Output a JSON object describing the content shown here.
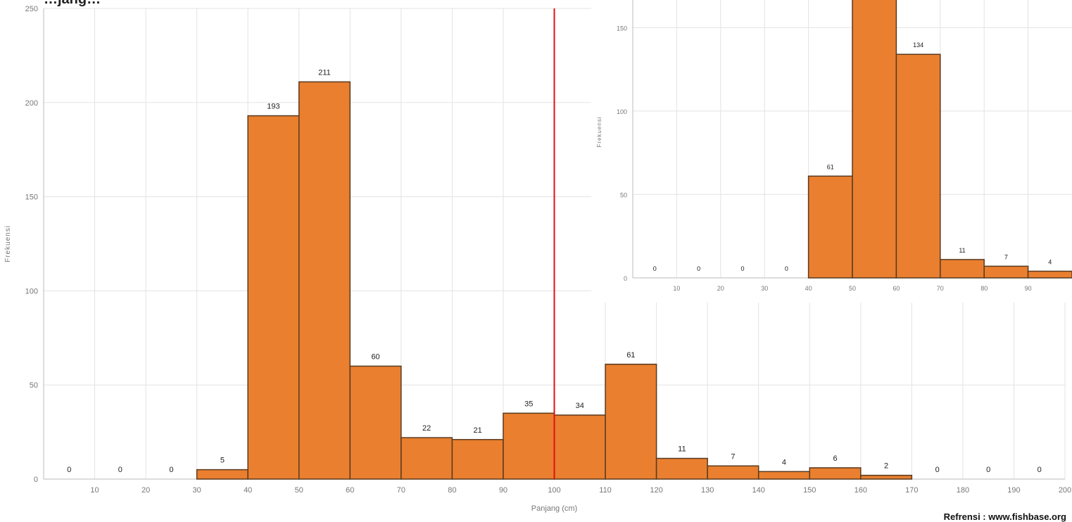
{
  "title_fragment": "…jang…",
  "reference": "Refrensi : www.fishbase.org",
  "colors": {
    "bar": "#E97F2F",
    "bar_stroke": "#5a3a1f",
    "marker": "#e01010",
    "grid": "#e3e3e3"
  },
  "chart_data": [
    {
      "type": "bar",
      "title": "",
      "xlabel": "Panjang (cm)",
      "ylabel": "Frekuensi",
      "xlim": [
        0,
        200
      ],
      "ylim": [
        0,
        250
      ],
      "bin_width": 10,
      "x_ticks": [
        10,
        20,
        30,
        40,
        50,
        60,
        70,
        80,
        90,
        100,
        110,
        120,
        130,
        140,
        150,
        160,
        170,
        180,
        190,
        200
      ],
      "y_ticks": [
        0,
        50,
        100,
        150,
        200,
        250
      ],
      "bin_starts": [
        0,
        10,
        20,
        30,
        40,
        50,
        60,
        70,
        80,
        90,
        100,
        110,
        120,
        130,
        140,
        150,
        160,
        170,
        180,
        190
      ],
      "values": [
        0,
        0,
        0,
        5,
        193,
        211,
        60,
        22,
        21,
        35,
        34,
        61,
        11,
        7,
        4,
        6,
        2,
        0,
        0,
        0
      ],
      "marker_line_x": 100,
      "grid": true
    },
    {
      "type": "bar",
      "title": "",
      "xlabel": "",
      "ylabel": "Frekuensi",
      "xlim": [
        0,
        100
      ],
      "ylim": [
        0,
        175
      ],
      "bin_width": 10,
      "x_ticks": [
        10,
        20,
        30,
        40,
        50,
        60,
        70,
        80,
        90
      ],
      "y_ticks": [
        0,
        50,
        100,
        150
      ],
      "bin_starts": [
        0,
        10,
        20,
        30,
        40,
        50,
        60,
        70,
        80,
        90
      ],
      "values": [
        0,
        0,
        0,
        0,
        61,
        175,
        134,
        11,
        7,
        4
      ],
      "labeled": [
        true,
        true,
        true,
        true,
        true,
        false,
        true,
        true,
        true,
        true
      ],
      "grid": true
    }
  ]
}
